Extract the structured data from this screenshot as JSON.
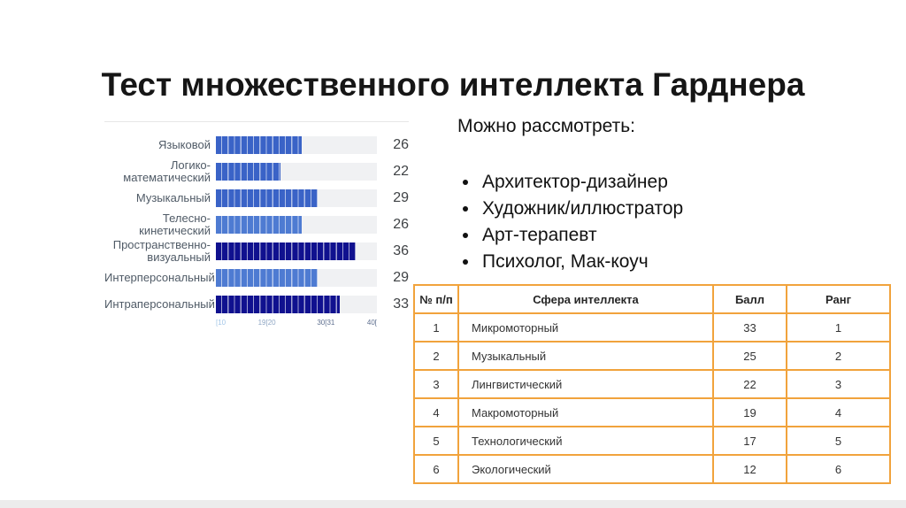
{
  "slide": {
    "title": "Тест множественного интеллекта Гарднера"
  },
  "chart_data": {
    "type": "bar",
    "orientation": "horizontal",
    "categories": [
      "Языковой",
      "Логико-математический",
      "Музыкальный",
      "Телесно-кинетический",
      "Пространственно-визуальный",
      "Интерперсональный",
      "Интраперсональный"
    ],
    "values": [
      26,
      22,
      29,
      26,
      36,
      29,
      33
    ],
    "bar_colors": [
      "#3A63C7",
      "#3A63C7",
      "#3A63C7",
      "#4E7BD2",
      "#10118F",
      "#4E7BD2",
      "#10118F"
    ],
    "track_color": "#f0f1f3",
    "xlim": [
      10,
      40
    ],
    "grid": false,
    "legend": false,
    "ticks": [
      {
        "label": "[10",
        "x": 10,
        "color": "#a3c6e8"
      },
      {
        "label": "19[20",
        "x": 19.5,
        "color": "#8fa6c4"
      },
      {
        "label": "30[31",
        "x": 30.5,
        "color": "#5f7090"
      },
      {
        "label": "40[",
        "x": 40,
        "color": "#5f7090"
      }
    ]
  },
  "consider": {
    "heading": "Можно рассмотреть:",
    "items": [
      "Архитектор-дизайнер",
      "Художник/иллюстратор",
      "Арт-терапевт",
      "Психолог, Мак-коуч"
    ]
  },
  "table": {
    "border_color": "#f1a33c",
    "headers": [
      "№ п/п",
      "Сфера интеллекта",
      "Балл",
      "Ранг"
    ],
    "rows": [
      [
        "1",
        "Микромоторный",
        "33",
        "1"
      ],
      [
        "2",
        "Музыкальный",
        "25",
        "2"
      ],
      [
        "3",
        "Лингвистический",
        "22",
        "3"
      ],
      [
        "4",
        "Макромоторный",
        "19",
        "4"
      ],
      [
        "5",
        "Технологический",
        "17",
        "5"
      ],
      [
        "6",
        "Экологический",
        "12",
        "6"
      ]
    ]
  }
}
